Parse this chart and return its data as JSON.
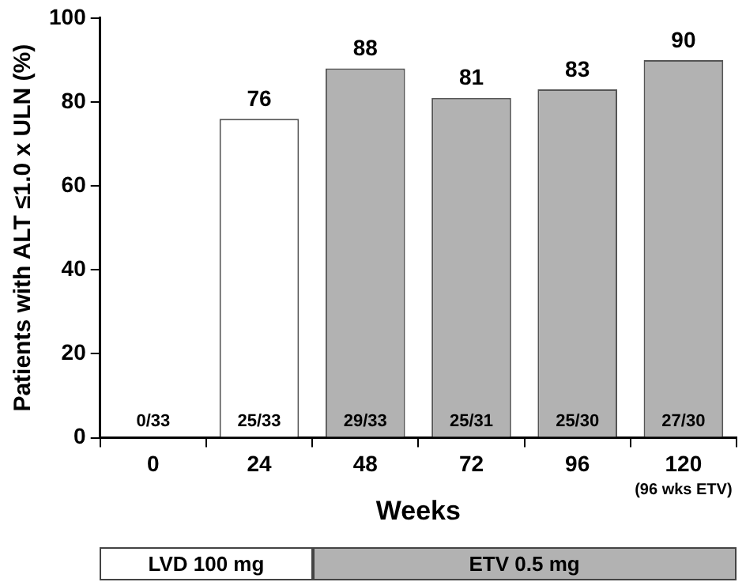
{
  "chart_data": {
    "type": "bar",
    "xlabel": "Weeks",
    "ylabel": "Patients with ALT ≤1.0 x ULN (%)",
    "categories": [
      "0",
      "24",
      "48",
      "72",
      "96",
      "120"
    ],
    "values": [
      0,
      76,
      88,
      81,
      83,
      90
    ],
    "colors": [
      "#ffffff",
      "#ffffff",
      "#b2b2b2",
      "#b2b2b2",
      "#b2b2b2",
      "#b2b2b2"
    ],
    "value_labels": [
      null,
      "76",
      "88",
      "81",
      "83",
      "90"
    ],
    "ylim": [
      0,
      100
    ],
    "yticks": [
      0,
      20,
      40,
      60,
      80,
      100
    ],
    "grid": false,
    "legend": false,
    "annotations": [
      {
        "text": "0/33",
        "x": "0",
        "y": 0
      },
      {
        "text": "25/33",
        "x": "24",
        "y": 0
      },
      {
        "text": "29/33",
        "x": "48",
        "y": 0
      },
      {
        "text": "25/31",
        "x": "72",
        "y": 0
      },
      {
        "text": "25/30",
        "x": "96",
        "y": 0
      },
      {
        "text": "27/30",
        "x": "120",
        "y": 0
      },
      "(96 wks ETV)",
      "LVD 100 mg",
      "ETV 0.5 mg"
    ]
  }
}
